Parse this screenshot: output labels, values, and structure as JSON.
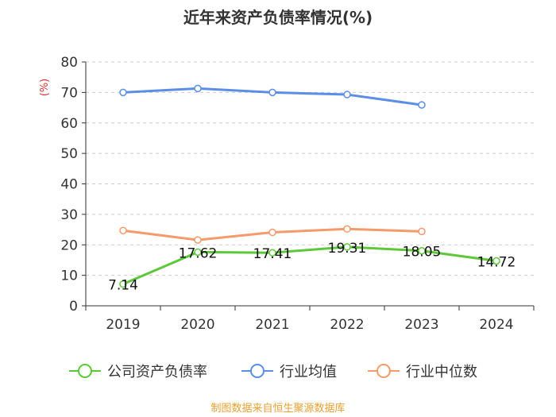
{
  "chart_data": {
    "type": "line",
    "title": "近年来资产负债率情况(%)",
    "ylabel": "(%)",
    "xlabel": "",
    "categories": [
      "2019",
      "2020",
      "2021",
      "2022",
      "2023",
      "2024"
    ],
    "ylim": [
      0,
      80
    ],
    "yticks": [
      0,
      10,
      20,
      30,
      40,
      50,
      60,
      70,
      80
    ],
    "grid": true,
    "legend_position": "bottom",
    "series": [
      {
        "name": "公司资产负债率",
        "color": "#5cc83a",
        "values": [
          7.14,
          17.62,
          17.41,
          19.31,
          18.05,
          14.72
        ],
        "show_labels": true
      },
      {
        "name": "行业均值",
        "color": "#5b8ee6",
        "values": [
          70.0,
          71.3,
          70.0,
          69.3,
          65.9,
          null
        ],
        "show_labels": false
      },
      {
        "name": "行业中位数",
        "color": "#f59a6a",
        "values": [
          24.7,
          21.6,
          24.1,
          25.2,
          24.4,
          null
        ],
        "show_labels": false
      }
    ]
  },
  "colors": {
    "title": "#333333",
    "axis_text": "#333333",
    "ylabel": "#e03030",
    "source": "#e8a030"
  },
  "source": "制图数据来自恒生聚源数据库"
}
